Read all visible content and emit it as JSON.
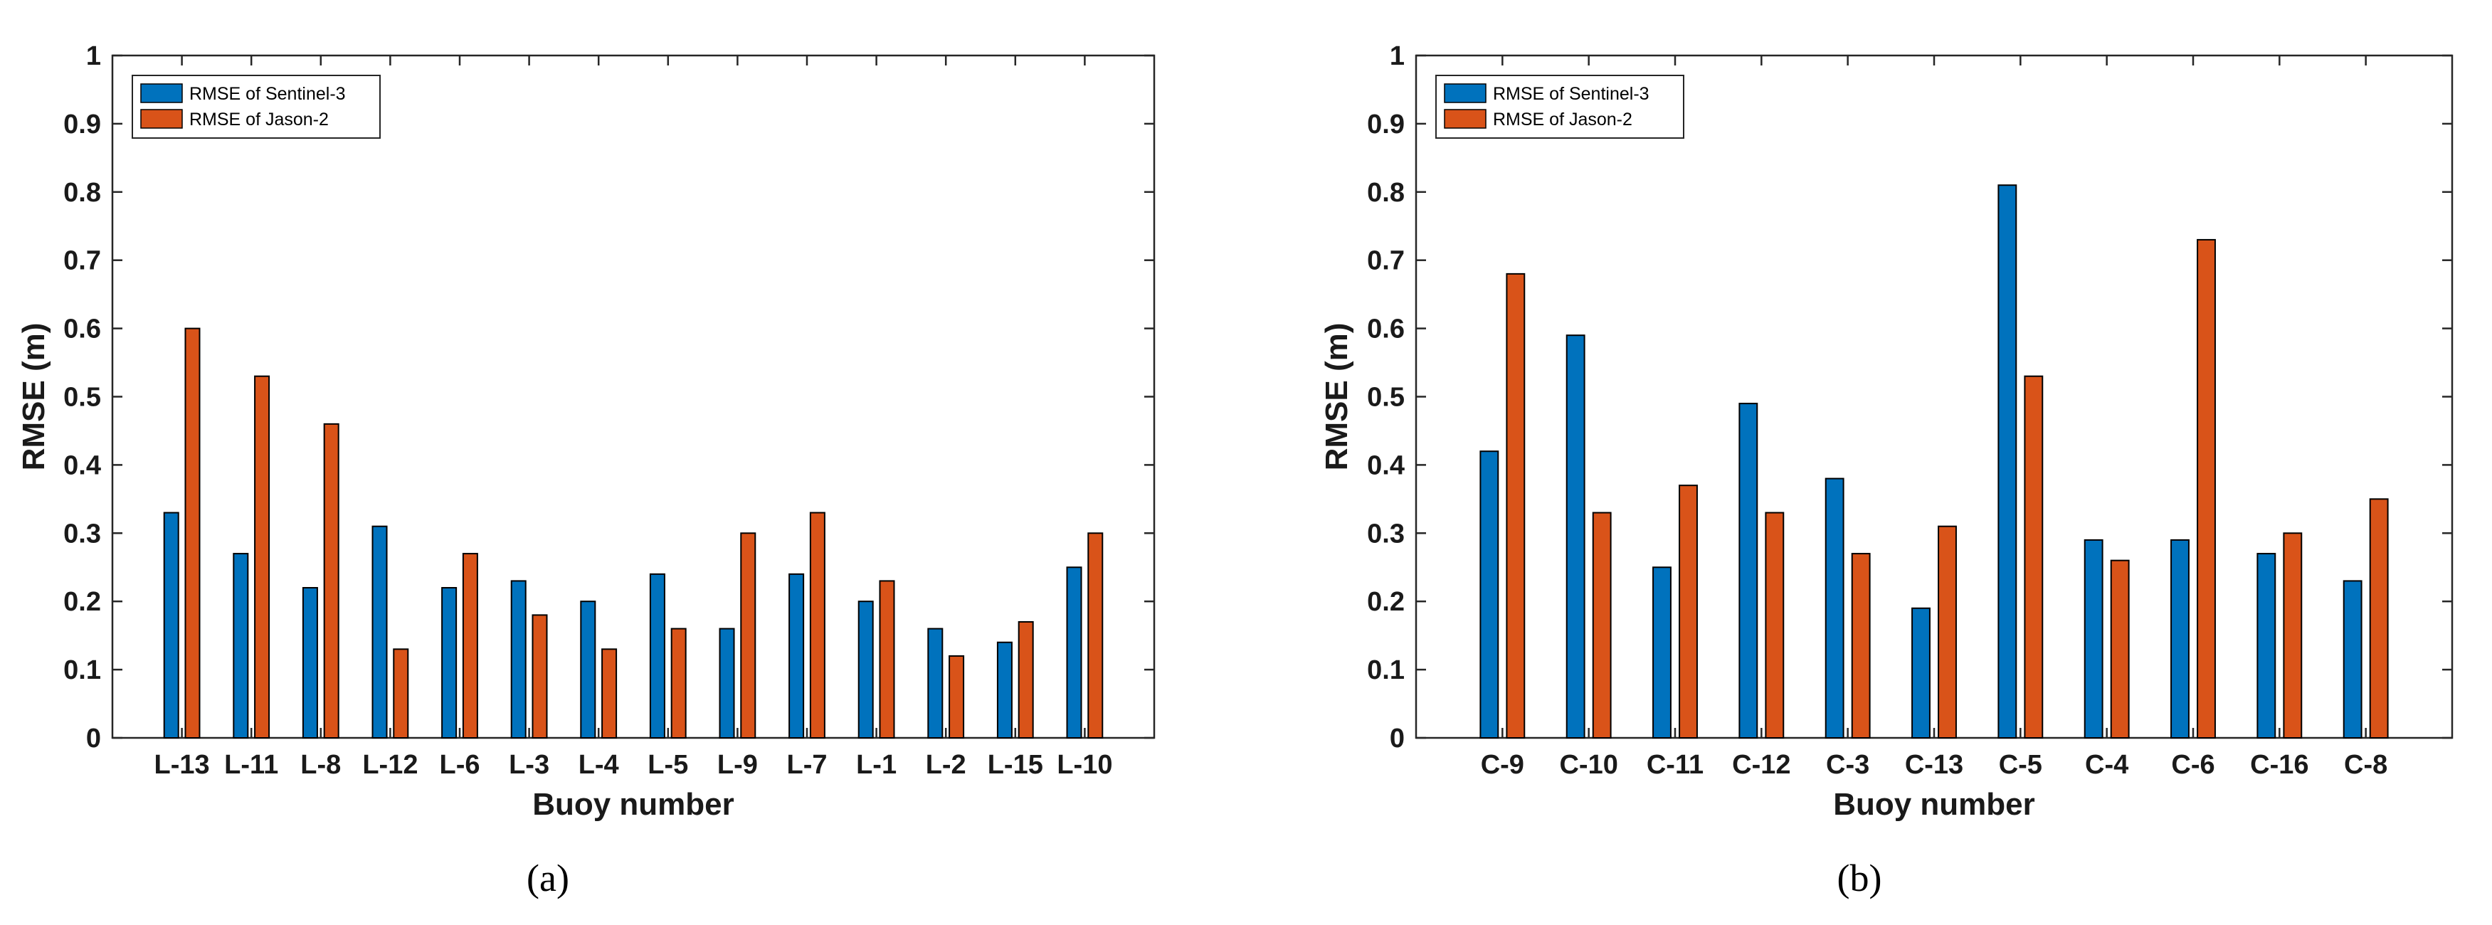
{
  "chart_data": [
    {
      "type": "bar",
      "panel_label": "(a)",
      "xlabel": "Buoy number",
      "ylabel": "RMSE (m)",
      "ylim": [
        0,
        1
      ],
      "yticks": [
        "0",
        "0.1",
        "0.2",
        "0.3",
        "0.4",
        "0.5",
        "0.6",
        "0.7",
        "0.8",
        "0.9",
        "1"
      ],
      "grid": false,
      "legend_position": "top-left",
      "categories": [
        "L-13",
        "L-11",
        "L-8",
        "L-12",
        "L-6",
        "L-3",
        "L-4",
        "L-5",
        "L-9",
        "L-7",
        "L-1",
        "L-2",
        "L-15",
        "L-10"
      ],
      "series": [
        {
          "name": "RMSE of Sentinel-3",
          "color": "#0072BD",
          "values": [
            0.33,
            0.27,
            0.22,
            0.31,
            0.22,
            0.23,
            0.2,
            0.24,
            0.16,
            0.24,
            0.2,
            0.16,
            0.14,
            0.25
          ]
        },
        {
          "name": "RMSE of Jason-2",
          "color": "#D95319",
          "values": [
            0.6,
            0.53,
            0.46,
            0.13,
            0.27,
            0.18,
            0.13,
            0.16,
            0.3,
            0.33,
            0.23,
            0.12,
            0.17,
            0.3
          ]
        }
      ]
    },
    {
      "type": "bar",
      "panel_label": "(b)",
      "xlabel": "Buoy number",
      "ylabel": "RMSE (m)",
      "ylim": [
        0,
        1
      ],
      "yticks": [
        "0",
        "0.1",
        "0.2",
        "0.3",
        "0.4",
        "0.5",
        "0.6",
        "0.7",
        "0.8",
        "0.9",
        "1"
      ],
      "grid": false,
      "legend_position": "top-left",
      "categories": [
        "C-9",
        "C-10",
        "C-11",
        "C-12",
        "C-3",
        "C-13",
        "C-5",
        "C-4",
        "C-6",
        "C-16",
        "C-8"
      ],
      "series": [
        {
          "name": "RMSE of Sentinel-3",
          "color": "#0072BD",
          "values": [
            0.42,
            0.59,
            0.25,
            0.49,
            0.38,
            0.19,
            0.81,
            0.29,
            0.29,
            0.27,
            0.23
          ]
        },
        {
          "name": "RMSE of Jason-2",
          "color": "#D95319",
          "values": [
            0.68,
            0.33,
            0.37,
            0.33,
            0.27,
            0.31,
            0.53,
            0.26,
            0.73,
            0.3,
            0.35
          ]
        }
      ]
    }
  ]
}
